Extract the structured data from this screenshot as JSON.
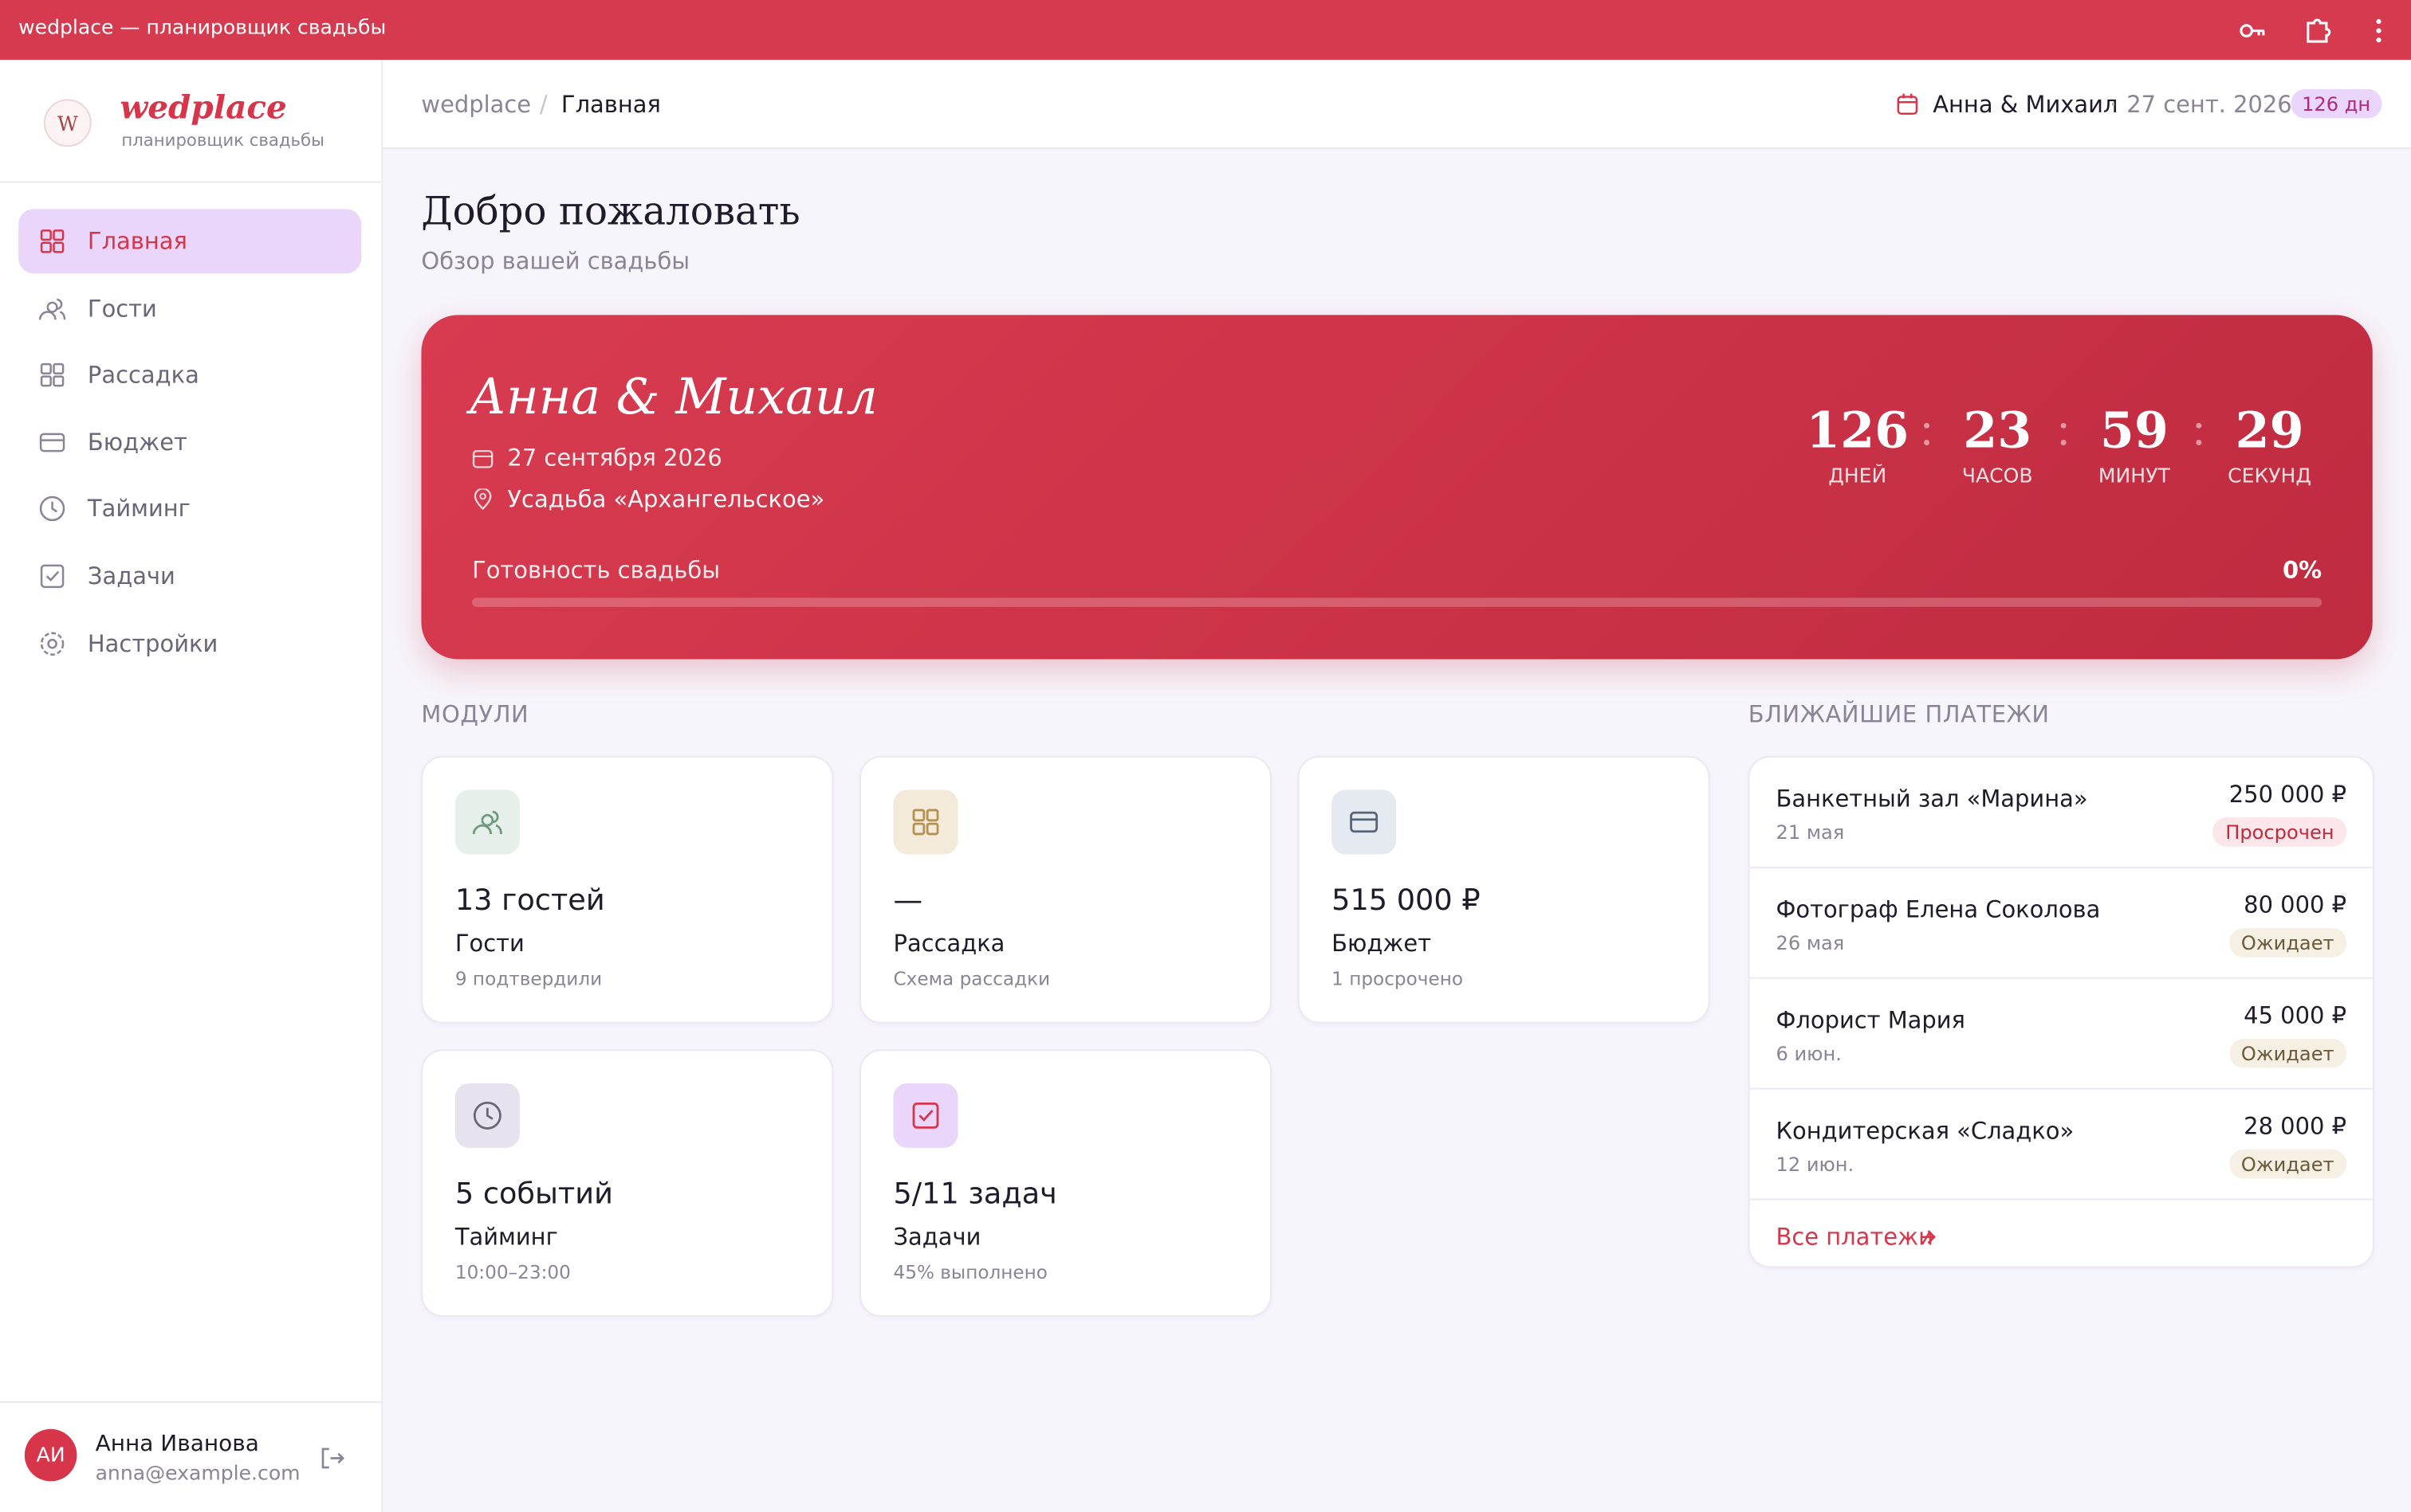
{
  "browser": {
    "title": "wedplace — планировщик свадьбы"
  },
  "sidebar": {
    "logo": "wedplace",
    "logo_sub": "планировщик свадьбы",
    "nav": [
      "Главная",
      "Гости",
      "Рассадка",
      "Бюджет",
      "Тайминг",
      "Задачи",
      "Настройки"
    ],
    "user": {
      "initials": "АИ",
      "name": "Анна Иванова",
      "email": "anna@example.com"
    }
  },
  "header": {
    "breadcrumb": [
      "wedplace",
      "Главная"
    ],
    "couple": "Анна & Михаил",
    "date": "27 сент. 2026",
    "days": "126 дн"
  },
  "page": {
    "title": "Добро пожаловать",
    "subtitle": "Обзор вашей свадьбы"
  },
  "hero": {
    "names": "Анна & Михаил",
    "date": "27 сентября 2026",
    "venue": "Усадьба «Архангельское»",
    "countdown": [
      {
        "value": "126",
        "label": "ДНЕЙ"
      },
      {
        "value": "23",
        "label": "ЧАСОВ"
      },
      {
        "value": "59",
        "label": "МИНУТ"
      },
      {
        "value": "29",
        "label": "СЕКУНД"
      }
    ],
    "progress_label": "Готовность свадьбы",
    "progress_value": "0%"
  },
  "modules": {
    "title": "МОДУЛИ",
    "cards": [
      {
        "value": "13 гостей",
        "name": "Гости",
        "note": "9 подтвердили"
      },
      {
        "value": "—",
        "name": "Рассадка",
        "note": "Схема рассадки"
      },
      {
        "value": "515 000 ₽",
        "name": "Бюджет",
        "note": "1 просрочено"
      },
      {
        "value": "5 событий",
        "name": "Тайминг",
        "note": "10:00–23:00"
      },
      {
        "value": "5/11 задач",
        "name": "Задачи",
        "note": "45% выполнено"
      }
    ]
  },
  "payments": {
    "title": "БЛИЖАЙШИЕ ПЛАТЕЖИ",
    "items": [
      {
        "name": "Банкетный зал «Марина»",
        "date": "21 мая",
        "amount": "250 000 ₽",
        "status": "Просрочен"
      },
      {
        "name": "Фотограф Елена Соколова",
        "date": "26 мая",
        "amount": "80 000 ₽",
        "status": "Ожидает"
      },
      {
        "name": "Флорист Мария",
        "date": "6 июн.",
        "amount": "45 000 ₽",
        "status": "Ожидает"
      },
      {
        "name": "Кондитерская «Сладко»",
        "date": "12 июн.",
        "amount": "28 000 ₽",
        "status": "Ожидает"
      }
    ],
    "link": "Все платежи"
  }
}
